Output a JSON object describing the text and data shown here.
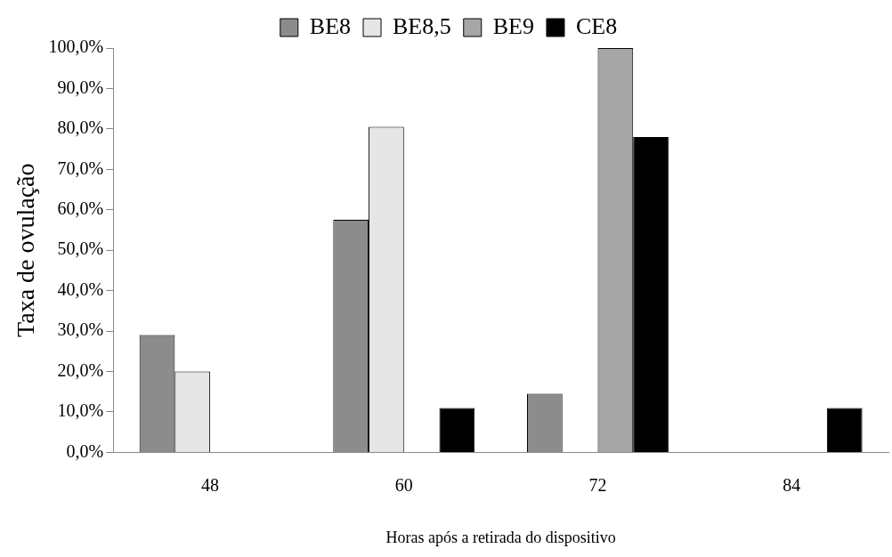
{
  "chart_data": {
    "type": "bar",
    "xlabel": "Horas após a retirada do dispositivo",
    "ylabel": "Taxa de ovulação",
    "categories": [
      "48",
      "60",
      "72",
      "84"
    ],
    "series": [
      {
        "name": "BE8",
        "color": "#8c8c8c",
        "values": [
          29,
          57.5,
          14.5,
          null
        ]
      },
      {
        "name": "BE8,5",
        "color": "#e6e6e6",
        "values": [
          20,
          80.5,
          null,
          null
        ]
      },
      {
        "name": "BE9",
        "color": "#a6a6a6",
        "values": [
          null,
          null,
          100,
          null
        ]
      },
      {
        "name": "CE8",
        "color": "#000000",
        "values": [
          null,
          11,
          78,
          11
        ]
      }
    ],
    "ylim": [
      0,
      100
    ],
    "yticks": [
      {
        "value": 0,
        "label": "0,0%"
      },
      {
        "value": 10,
        "label": "10,0%"
      },
      {
        "value": 20,
        "label": "20,0%"
      },
      {
        "value": 30,
        "label": "30,0%"
      },
      {
        "value": 40,
        "label": "40,0%"
      },
      {
        "value": 50,
        "label": "50,0%"
      },
      {
        "value": 60,
        "label": "60,0%"
      },
      {
        "value": 70,
        "label": "70,0%"
      },
      {
        "value": 80,
        "label": "80,0%"
      },
      {
        "value": 90,
        "label": "90,0%"
      },
      {
        "value": 100,
        "label": "100,0%"
      }
    ],
    "grid": false,
    "legend": "top"
  }
}
